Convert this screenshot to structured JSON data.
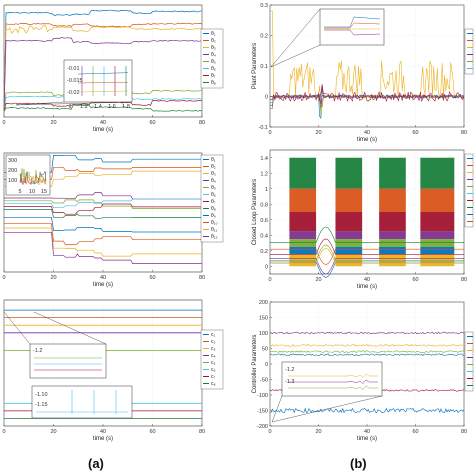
{
  "panel_labels": {
    "a": "(a)",
    "b": "(b)"
  },
  "colors": [
    "#0072BD",
    "#D95319",
    "#EDB120",
    "#7E2F8E",
    "#77AC30",
    "#4DBEEE",
    "#A2142F",
    "#1a7f3c"
  ],
  "chart_data": [
    {
      "id": "a1",
      "type": "line",
      "xlabel": "time (s)",
      "ylabel": "",
      "xlim": [
        0,
        80
      ],
      "xticks": [
        0,
        20,
        40,
        60,
        80
      ],
      "yticks": [],
      "legend": [
        "θ₁",
        "θ₂",
        "θ₃",
        "θ₄",
        "θ₅",
        "θ₆",
        "θ₇",
        "θ₈"
      ],
      "series_levels": [
        0.93,
        0.83,
        0.78,
        0.68,
        0.22,
        0.18,
        0.12,
        0.08
      ],
      "inset": {
        "yticks": [
          "-0.01",
          "-0.015",
          "-0.02"
        ],
        "xticks": [
          "1",
          "1.2",
          "1.4",
          "1.6",
          "1.8"
        ]
      }
    },
    {
      "id": "a2",
      "type": "line",
      "xlabel": "time (s)",
      "ylabel": "",
      "xlim": [
        0,
        80
      ],
      "xticks": [
        0,
        20,
        40,
        60,
        80
      ],
      "yticks": [],
      "legend": [
        "θ₁",
        "θ₂",
        "θ₃",
        "θ₄",
        "θ₅",
        "θ₆",
        "θ₇",
        "θ₈",
        "θ₉",
        "θ₁₀",
        "θ₁₁",
        "θ₁₂"
      ],
      "inset": {
        "yticks": [
          "300",
          "200",
          "100"
        ],
        "xticks": [
          "5",
          "10",
          "15"
        ]
      }
    },
    {
      "id": "a3",
      "type": "line",
      "xlabel": "time (s)",
      "ylabel": "",
      "xlim": [
        0,
        80
      ],
      "xticks": [
        0,
        20,
        40,
        60,
        80
      ],
      "yticks": [],
      "legend": [
        "c₁",
        "c₂",
        "c₃",
        "c₄",
        "c₅",
        "c₆",
        "c₇",
        "c₈"
      ],
      "inset": {
        "yticks": [
          "-1.2"
        ],
        "xticks": []
      },
      "inset2": {
        "yticks": [
          "-1.10",
          "-1.15"
        ],
        "xticks": []
      }
    },
    {
      "id": "b1",
      "type": "line",
      "xlabel": "time (s)",
      "ylabel": "Plant Parameters",
      "xlim": [
        0,
        80
      ],
      "xticks": [
        0,
        20,
        40,
        60,
        80
      ],
      "ylim": [
        -0.1,
        0.3
      ],
      "yticks": [
        -0.1,
        0,
        0.1,
        0.2,
        0.3
      ]
    },
    {
      "id": "b2",
      "type": "line",
      "xlabel": "time (s)",
      "ylabel": "Closed Loop Parameters",
      "xlim": [
        0,
        80
      ],
      "xticks": [
        0,
        20,
        40,
        60,
        80
      ],
      "ylim": [
        -0.1,
        1.5
      ],
      "yticks": [
        0,
        0.2,
        0.4,
        0.6,
        0.8,
        1,
        1.2,
        1.4
      ]
    },
    {
      "id": "b3",
      "type": "line",
      "xlabel": "time (s)",
      "ylabel": "Controller Parameters",
      "xlim": [
        0,
        80
      ],
      "xticks": [
        0,
        20,
        40,
        60,
        80
      ],
      "ylim": [
        -200,
        200
      ],
      "yticks": [
        -200,
        -150,
        -100,
        -50,
        0,
        50,
        100,
        150,
        200
      ],
      "inset": {
        "yticks": [
          "-1.2",
          "-1.3"
        ],
        "xticks": []
      }
    }
  ]
}
